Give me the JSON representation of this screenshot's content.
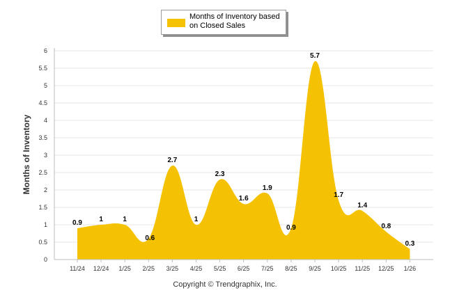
{
  "legend": {
    "label": "Months of Inventory based on Closed Sales",
    "color": "#f5c203"
  },
  "footer": {
    "copyright": "Copyright © Trendgraphix, Inc."
  },
  "chart_data": {
    "type": "area",
    "title": "",
    "xlabel": "",
    "ylabel": "Months of Inventory",
    "ylim": [
      0,
      6
    ],
    "yticks": [
      "0",
      "0.5",
      "1",
      "1.5",
      "2",
      "2.5",
      "3",
      "3.5",
      "4",
      "4.5",
      "5",
      "5.5",
      "6"
    ],
    "grid": true,
    "legend_position": "top-center",
    "categories": [
      "11/24",
      "12/24",
      "1/25",
      "2/25",
      "3/25",
      "4/25",
      "5/25",
      "6/25",
      "7/25",
      "8/25",
      "9/25",
      "10/25",
      "11/25",
      "12/25",
      "1/26"
    ],
    "series": [
      {
        "name": "Months of Inventory based on Closed Sales",
        "color": "#f5c203",
        "values": [
          0.9,
          1,
          1,
          0.6,
          2.7,
          1,
          2.3,
          1.6,
          1.9,
          0.9,
          5.7,
          1.7,
          1.4,
          0.8,
          0.3
        ],
        "labels": [
          "0.9",
          "1",
          "1",
          "0.6",
          "2.7",
          "1",
          "2.3",
          "1.6",
          "1.9",
          "0.9",
          "5.7",
          "1.7",
          "1.4",
          "0.8",
          "0.3"
        ]
      }
    ]
  }
}
